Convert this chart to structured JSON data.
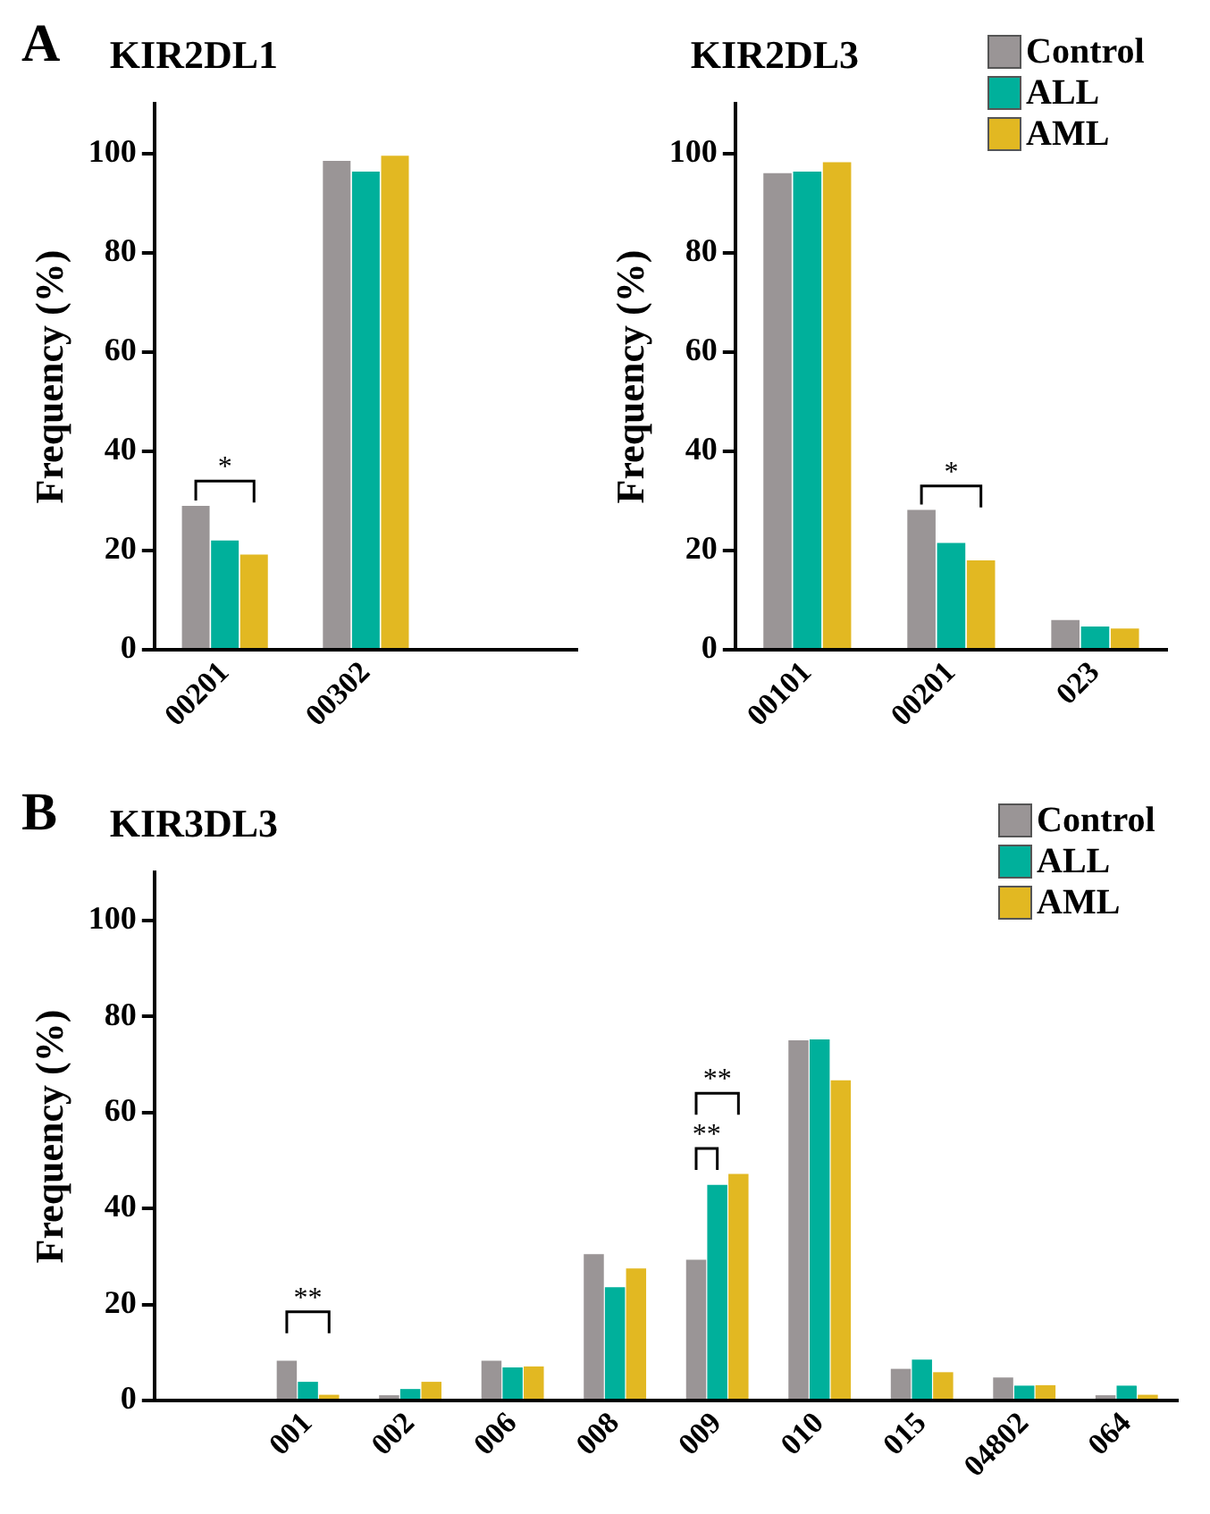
{
  "chart_data": [
    {
      "type": "bar",
      "title": "KIR2DL1",
      "ylabel": "Frequency (%)",
      "categories": [
        "00201",
        "00302",
        null
      ],
      "series": [
        {
          "color": "#9a9596",
          "values": [
            29,
            98.5,
            null
          ]
        },
        {
          "color": "#00b09b",
          "values": [
            22,
            96.3,
            null
          ]
        },
        {
          "color": "#e2b822",
          "values": [
            19.2,
            99.5,
            null
          ]
        }
      ],
      "ylim": [
        0,
        110
      ],
      "yticks": [
        0,
        20,
        40,
        60,
        80,
        100
      ],
      "grid": false,
      "legend": false,
      "annotations": [
        "A",
        "*"
      ]
    },
    {
      "type": "bar",
      "title": "KIR2DL3",
      "ylabel": "Frequency (%)",
      "categories": [
        "00101",
        "00201",
        "023"
      ],
      "series": [
        {
          "name": "Control",
          "color": "#9a9596",
          "values": [
            96,
            28.2,
            6
          ]
        },
        {
          "name": "ALL",
          "color": "#00b09b",
          "values": [
            96.3,
            21.5,
            4.7
          ]
        },
        {
          "name": "AML",
          "color": "#e2b822",
          "values": [
            98.2,
            18,
            4.3
          ]
        }
      ],
      "ylim": [
        0,
        110
      ],
      "yticks": [
        0,
        20,
        40,
        60,
        80,
        100
      ],
      "grid": false,
      "legend": "top right",
      "annotations": [
        "*"
      ]
    },
    {
      "type": "bar",
      "title": "KIR3DL3",
      "ylabel": "Frequency (%)",
      "categories": [
        null,
        "001",
        "002",
        "006",
        "008",
        "009",
        "010",
        "015",
        "04802",
        "064"
      ],
      "series": [
        {
          "name": "Control",
          "color": "#9a9596",
          "values": [
            null,
            8.3,
            1.1,
            8.3,
            30.5,
            29.3,
            75,
            6.6,
            4.8,
            1.1
          ]
        },
        {
          "name": "ALL",
          "color": "#00b09b",
          "values": [
            null,
            3.9,
            2.4,
            6.9,
            23.6,
            44.9,
            75.2,
            8.5,
            3.1,
            3.1
          ]
        },
        {
          "name": "AML",
          "color": "#e2b822",
          "values": [
            null,
            1.2,
            3.9,
            7.1,
            27.5,
            47.2,
            66.7,
            5.9,
            3.2,
            1.2
          ]
        }
      ],
      "ylim": [
        0,
        110
      ],
      "yticks": [
        0,
        20,
        40,
        60,
        80,
        100
      ],
      "grid": false,
      "legend": "top right",
      "annotations": [
        "B",
        "**",
        "**",
        "**"
      ]
    }
  ]
}
